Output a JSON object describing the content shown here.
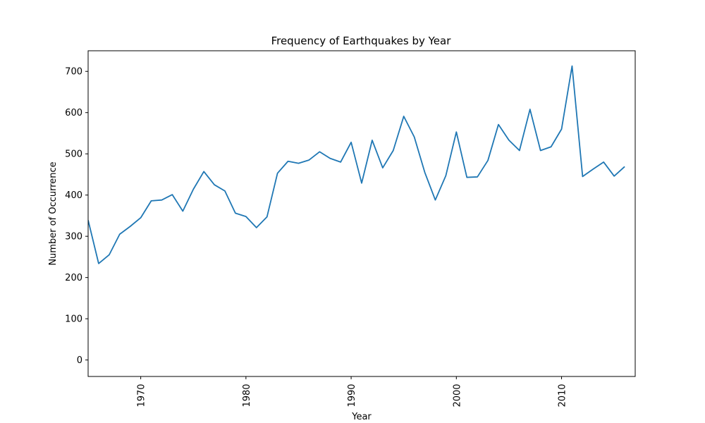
{
  "chart_data": {
    "type": "line",
    "title": "Frequency of Earthquakes by Year",
    "xlabel": "Year",
    "ylabel": "Number of Occurrence",
    "xlim": [
      1965,
      2017
    ],
    "ylim": [
      -40,
      750
    ],
    "x_ticks": [
      1970,
      1980,
      1990,
      2000,
      2010
    ],
    "y_ticks": [
      0,
      100,
      200,
      300,
      400,
      500,
      600,
      700
    ],
    "grid": false,
    "legend": "none",
    "line_color": "#1f77b4",
    "series": [
      {
        "x": [
          1965,
          1966,
          1967,
          1968,
          1969,
          1970,
          1971,
          1972,
          1973,
          1974,
          1975,
          1976,
          1977,
          1978,
          1979,
          1980,
          1981,
          1982,
          1983,
          1984,
          1985,
          1986,
          1987,
          1988,
          1989,
          1990,
          1991,
          1992,
          1993,
          1994,
          1995,
          1996,
          1997,
          1998,
          1999,
          2000,
          2001,
          2002,
          2003,
          2004,
          2005,
          2006,
          2007,
          2008,
          2009,
          2010,
          2011,
          2012,
          2013,
          2014,
          2015,
          2016
        ],
        "values": [
          339,
          234,
          255,
          305,
          324,
          345,
          386,
          388,
          401,
          361,
          414,
          457,
          425,
          410,
          356,
          348,
          321,
          347,
          453,
          482,
          477,
          485,
          505,
          489,
          480,
          528,
          429,
          533,
          466,
          508,
          591,
          541,
          455,
          388,
          447,
          553,
          443,
          444,
          484,
          571,
          533,
          508,
          608,
          508,
          517,
          560,
          713,
          445,
          463,
          480,
          446,
          469
        ]
      }
    ]
  }
}
